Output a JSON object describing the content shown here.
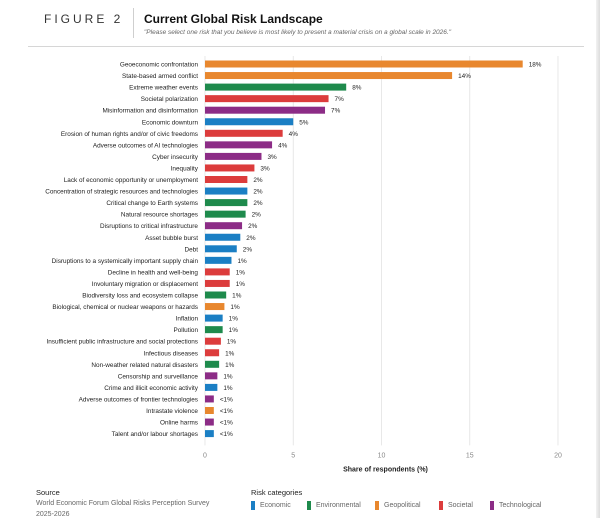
{
  "header": {
    "figure_label": "FIGURE 2",
    "title": "Current Global Risk Landscape",
    "subtitle": "\"Please select one risk that you believe is most likely to present a material crisis on a global scale in 2026.\""
  },
  "footer": {
    "source_title": "Source",
    "source_text": "World Economic Forum Global Risks Perception Survey",
    "source_text2": "2025-2026",
    "categories_title": "Risk categories",
    "legend": [
      {
        "label": "Economic",
        "color": "#1b7fc4"
      },
      {
        "label": "Environmental",
        "color": "#1e8a4c"
      },
      {
        "label": "Geopolitical",
        "color": "#e8872e"
      },
      {
        "label": "Societal",
        "color": "#dc3c3c"
      },
      {
        "label": "Technological",
        "color": "#8c2c86"
      }
    ]
  },
  "chart_data": {
    "type": "bar",
    "orientation": "horizontal",
    "xlabel": "Share of respondents (%)",
    "xlim": [
      0,
      20
    ],
    "xticks": [
      "0",
      "5",
      "10",
      "15",
      "20"
    ],
    "grid": true,
    "colors": {
      "Economic": "#1b7fc4",
      "Environmental": "#1e8a4c",
      "Geopolitical": "#e8872e",
      "Societal": "#dc3c3c",
      "Technological": "#8c2c86"
    },
    "bars": [
      {
        "label": "Geoeconomic confrontation",
        "value": 18,
        "text": "18%",
        "category": "Geopolitical"
      },
      {
        "label": "State-based armed conflict",
        "value": 14,
        "text": "14%",
        "category": "Geopolitical"
      },
      {
        "label": "Extreme weather events",
        "value": 8,
        "text": "8%",
        "category": "Environmental"
      },
      {
        "label": "Societal polarization",
        "value": 7,
        "text": "7%",
        "category": "Societal"
      },
      {
        "label": "Misinformation and disinformation",
        "value": 6.8,
        "text": "7%",
        "category": "Technological"
      },
      {
        "label": "Economic downturn",
        "value": 5,
        "text": "5%",
        "category": "Economic"
      },
      {
        "label": "Erosion of human rights and/or of civic freedoms",
        "value": 4.4,
        "text": "4%",
        "category": "Societal"
      },
      {
        "label": "Adverse outcomes of AI technologies",
        "value": 3.8,
        "text": "4%",
        "category": "Technological"
      },
      {
        "label": "Cyber insecurity",
        "value": 3.2,
        "text": "3%",
        "category": "Technological"
      },
      {
        "label": "Inequality",
        "value": 2.8,
        "text": "3%",
        "category": "Societal"
      },
      {
        "label": "Lack of economic opportunity or unemployment",
        "value": 2.4,
        "text": "2%",
        "category": "Societal"
      },
      {
        "label": "Concentration of strategic resources and technologies",
        "value": 2.4,
        "text": "2%",
        "category": "Economic"
      },
      {
        "label": "Critical change to Earth systems",
        "value": 2.4,
        "text": "2%",
        "category": "Environmental"
      },
      {
        "label": "Natural resource shortages",
        "value": 2.3,
        "text": "2%",
        "category": "Environmental"
      },
      {
        "label": "Disruptions to critical infrastructure",
        "value": 2.1,
        "text": "2%",
        "category": "Technological"
      },
      {
        "label": "Asset bubble burst",
        "value": 2,
        "text": "2%",
        "category": "Economic"
      },
      {
        "label": "Debt",
        "value": 1.8,
        "text": "2%",
        "category": "Economic"
      },
      {
        "label": "Disruptions to a systemically important supply chain",
        "value": 1.5,
        "text": "1%",
        "category": "Economic"
      },
      {
        "label": "Decline in health and well-being",
        "value": 1.4,
        "text": "1%",
        "category": "Societal"
      },
      {
        "label": "Involuntary migration or displacement",
        "value": 1.4,
        "text": "1%",
        "category": "Societal"
      },
      {
        "label": "Biodiversity loss and ecosystem collapse",
        "value": 1.2,
        "text": "1%",
        "category": "Environmental"
      },
      {
        "label": "Biological, chemical or nuclear weapons or hazards",
        "value": 1.1,
        "text": "1%",
        "category": "Geopolitical"
      },
      {
        "label": "Inflation",
        "value": 1,
        "text": "1%",
        "category": "Economic"
      },
      {
        "label": "Pollution",
        "value": 1,
        "text": "1%",
        "category": "Environmental"
      },
      {
        "label": "Insufficient public infrastructure and social protections",
        "value": 0.9,
        "text": "1%",
        "category": "Societal"
      },
      {
        "label": "Infectious diseases",
        "value": 0.8,
        "text": "1%",
        "category": "Societal"
      },
      {
        "label": "Non-weather related natural disasters",
        "value": 0.8,
        "text": "1%",
        "category": "Environmental"
      },
      {
        "label": "Censorship and surveillance",
        "value": 0.7,
        "text": "1%",
        "category": "Technological"
      },
      {
        "label": "Crime and illicit economic activity",
        "value": 0.7,
        "text": "1%",
        "category": "Economic"
      },
      {
        "label": "Adverse outcomes of frontier technologies",
        "value": 0.5,
        "text": "<1%",
        "category": "Technological"
      },
      {
        "label": "Intrastate violence",
        "value": 0.5,
        "text": "<1%",
        "category": "Geopolitical"
      },
      {
        "label": "Online harms",
        "value": 0.5,
        "text": "<1%",
        "category": "Technological"
      },
      {
        "label": "Talent and/or labour shortages",
        "value": 0.5,
        "text": "<1%",
        "category": "Economic"
      }
    ]
  }
}
